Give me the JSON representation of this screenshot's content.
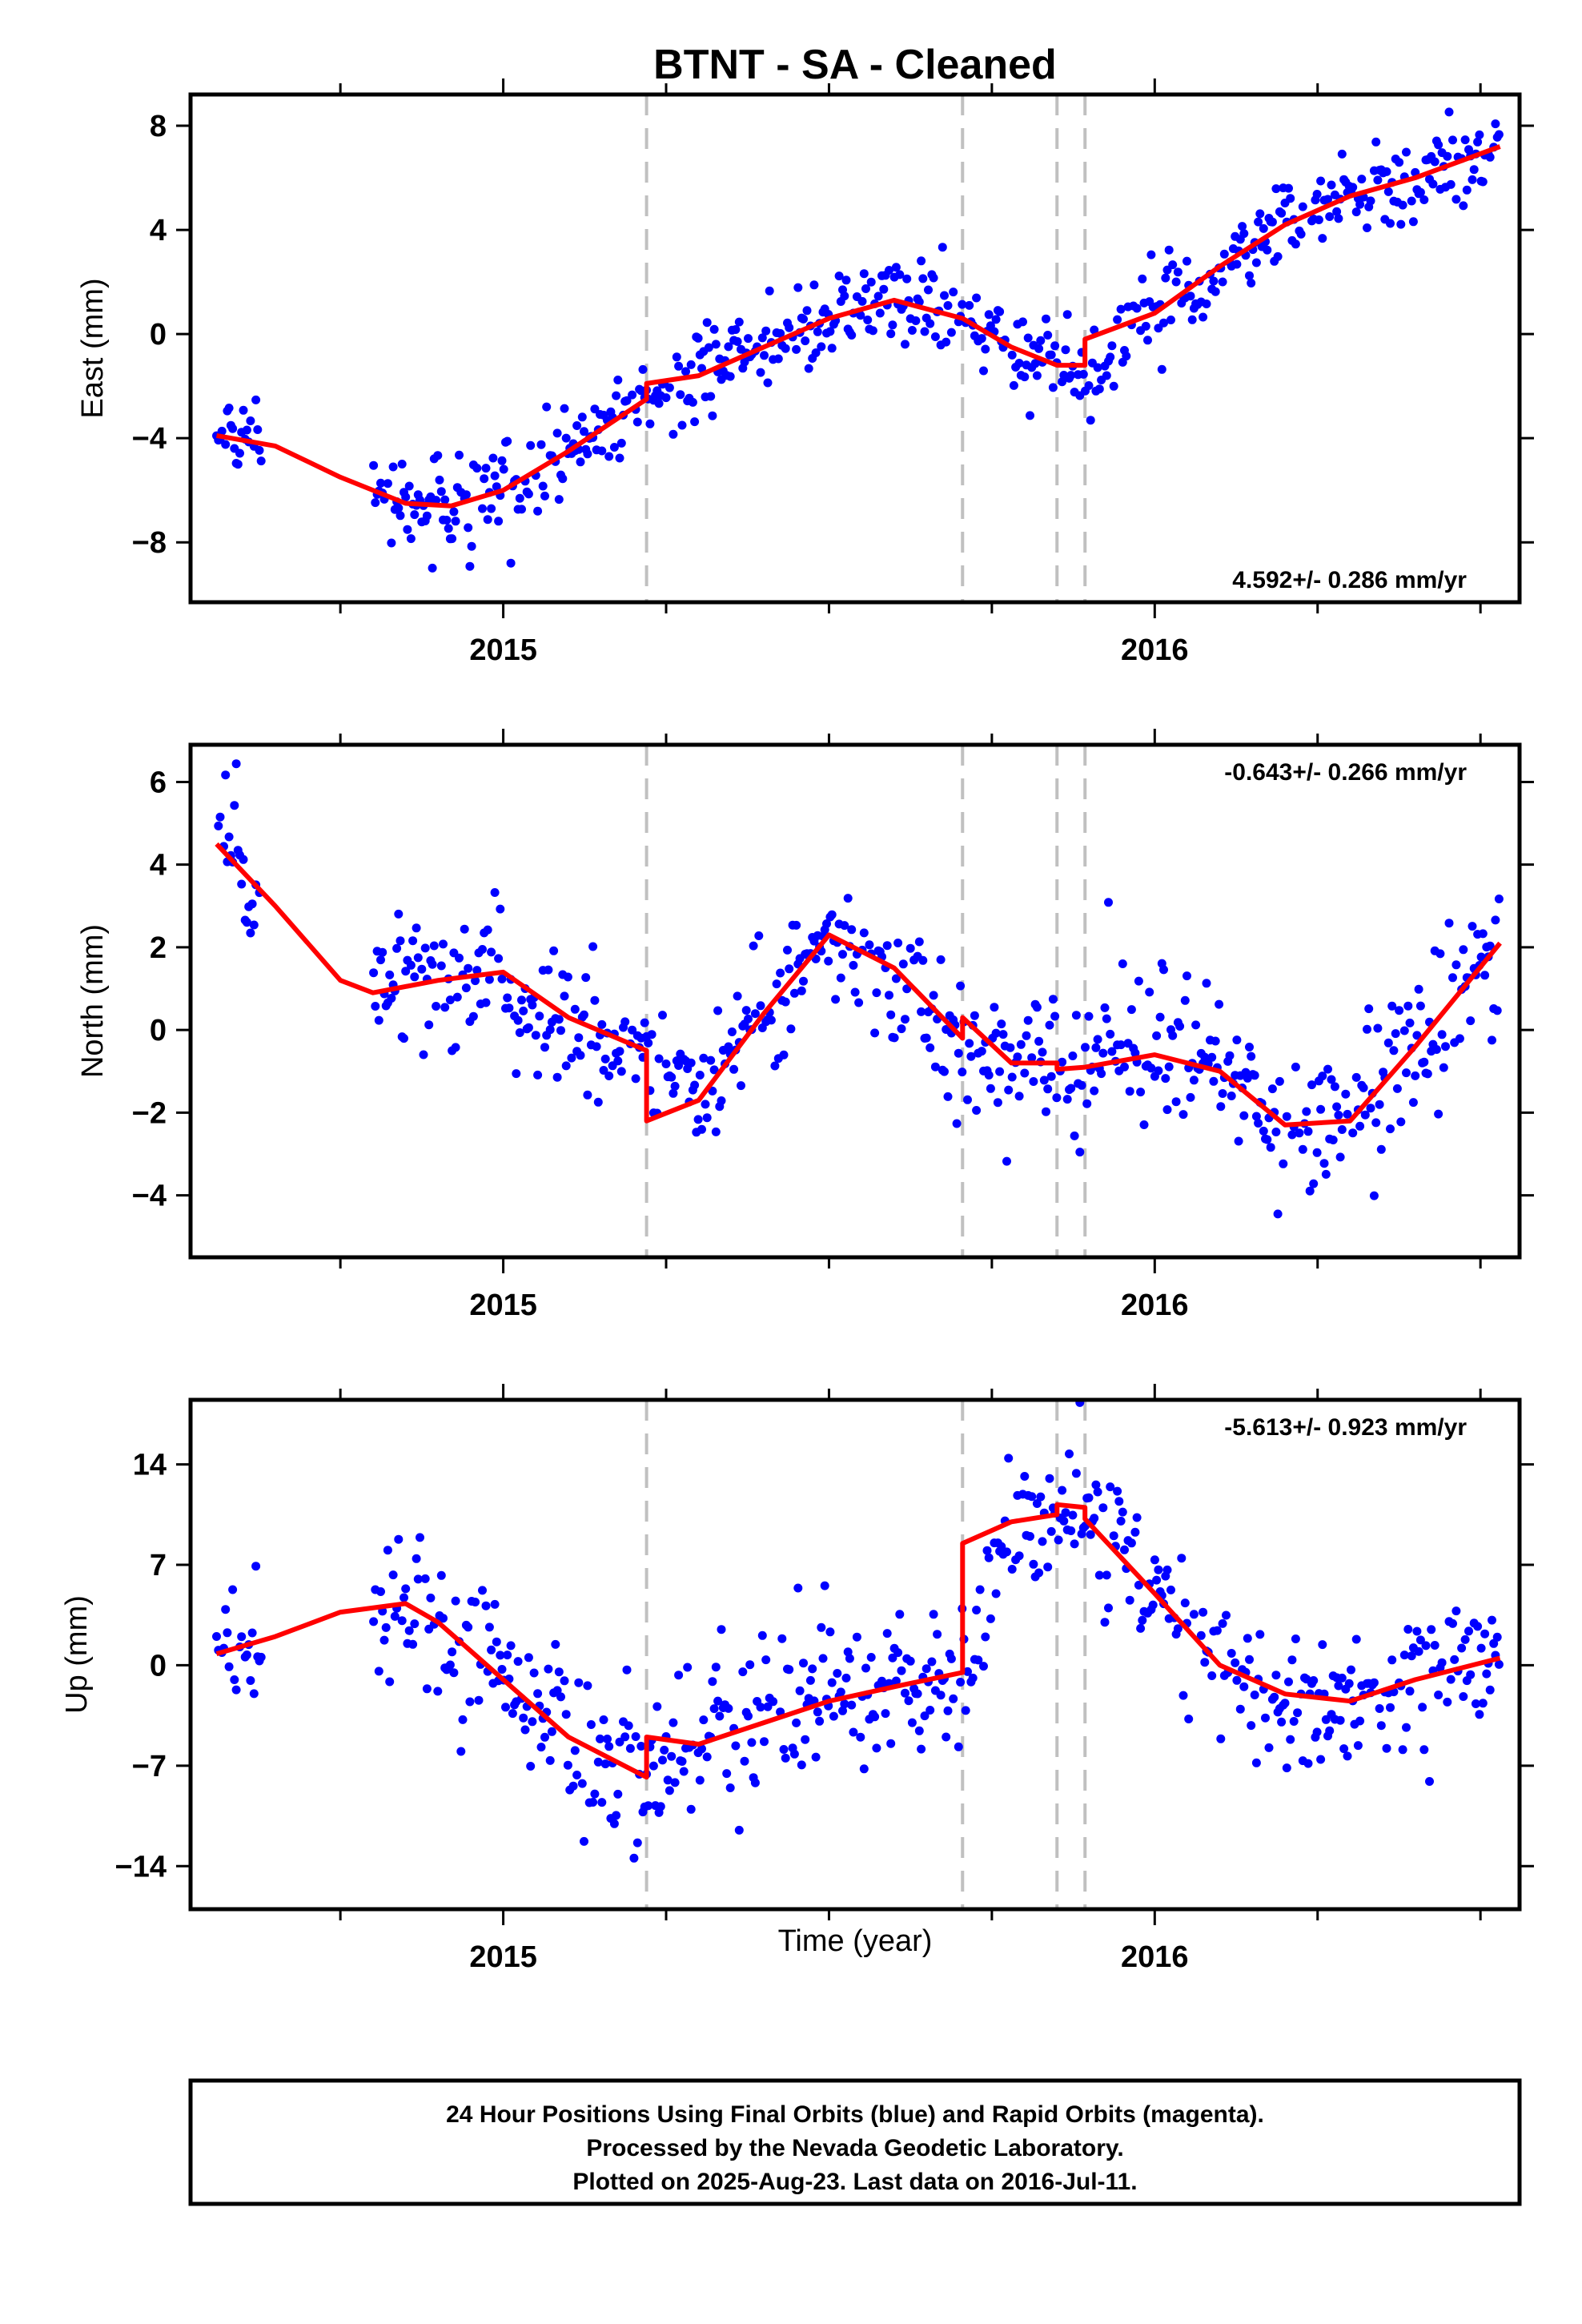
{
  "title": "BTNT  - SA - Cleaned",
  "xlabel": "Time (year)",
  "x_ticks": [
    "2015",
    "2016"
  ],
  "footer": {
    "line1": "24 Hour Positions Using Final Orbits (blue) and Rapid Orbits (magenta).",
    "line2": "Processed by the Nevada Geodetic Laboratory.",
    "line3": "Plotted on 2025-Aug-23. Last data on 2016-Jul-11."
  },
  "colors": {
    "points": "#0000ff",
    "model": "#ff0000",
    "breaks": "#c0c0c0",
    "frame": "#000000"
  },
  "chart_data": [
    {
      "type": "scatter",
      "panel": "east",
      "ylabel": "East (mm)",
      "rate": "4.592+/- 0.286 mm/yr",
      "xlim": [
        2014.52,
        2016.56
      ],
      "ylim": [
        -10.3,
        9.2
      ],
      "y_ticks": [
        -8,
        -4,
        0,
        4,
        8
      ],
      "break_epochs": [
        2015.22,
        2015.705,
        2015.85,
        2015.893
      ],
      "model": {
        "x": [
          2014.56,
          2014.65,
          2014.75,
          2014.85,
          2014.92,
          2015.0,
          2015.1,
          2015.22,
          2015.3,
          2015.4,
          2015.5,
          2015.6,
          2015.705,
          2015.78,
          2015.85,
          2015.893,
          2016.0,
          2016.1,
          2016.2,
          2016.3,
          2016.4,
          2016.53
        ],
        "y": [
          -3.9,
          -4.3,
          -5.5,
          -6.5,
          -6.6,
          -6.0,
          -4.5,
          -2.5,
          -1.6,
          -0.5,
          0.6,
          1.3,
          0.6,
          -0.5,
          -1.2,
          -1.2,
          0.8,
          2.6,
          4.2,
          5.3,
          6.0,
          7.2
        ],
        "breaks": [
          {
            "at": 2015.22,
            "from": -2.5,
            "to": -1.9
          },
          {
            "at": 2015.893,
            "from": -1.2,
            "to": -0.2
          }
        ]
      },
      "residual_std": 0.85
    },
    {
      "type": "scatter",
      "panel": "north",
      "ylabel": "North (mm)",
      "rate": "-0.643+/- 0.266 mm/yr",
      "xlim": [
        2014.52,
        2016.56
      ],
      "ylim": [
        -5.5,
        6.9
      ],
      "y_ticks": [
        -4,
        -2,
        0,
        2,
        4,
        6
      ],
      "break_epochs": [
        2015.22,
        2015.705,
        2015.85,
        2015.893
      ],
      "model": {
        "x": [
          2014.56,
          2014.65,
          2014.75,
          2014.8,
          2014.9,
          2015.0,
          2015.1,
          2015.22,
          2015.3,
          2015.4,
          2015.5,
          2015.6,
          2015.705,
          2015.78,
          2015.85,
          2015.893,
          2016.0,
          2016.1,
          2016.2,
          2016.3,
          2016.4,
          2016.53
        ],
        "y": [
          4.5,
          3.0,
          1.2,
          0.9,
          1.2,
          1.4,
          0.3,
          -0.5,
          -1.7,
          0.4,
          2.3,
          1.5,
          -0.2,
          -0.8,
          -0.8,
          -0.9,
          -0.6,
          -1.0,
          -2.3,
          -2.2,
          -0.4,
          2.1
        ],
        "breaks": [
          {
            "at": 2015.22,
            "from": -0.5,
            "to": -2.2
          },
          {
            "at": 2015.705,
            "from": -0.2,
            "to": 0.3
          },
          {
            "at": 2015.85,
            "from": -0.8,
            "to": -0.95
          }
        ]
      },
      "residual_std": 0.85
    },
    {
      "type": "scatter",
      "panel": "up",
      "ylabel": "Up (mm)",
      "rate": "-5.613+/- 0.923 mm/yr",
      "xlim": [
        2014.52,
        2016.56
      ],
      "ylim": [
        -17.0,
        18.5
      ],
      "y_ticks": [
        -14,
        -7,
        0,
        7,
        14
      ],
      "break_epochs": [
        2015.22,
        2015.705,
        2015.85,
        2015.893
      ],
      "model": {
        "x": [
          2014.56,
          2014.65,
          2014.75,
          2014.85,
          2014.9,
          2015.0,
          2015.1,
          2015.22,
          2015.3,
          2015.4,
          2015.5,
          2015.6,
          2015.705,
          2015.78,
          2015.85,
          2015.893,
          2016.0,
          2016.1,
          2016.2,
          2016.3,
          2016.4,
          2016.53
        ],
        "y": [
          0.8,
          2.0,
          3.7,
          4.3,
          3.0,
          -1.0,
          -5.0,
          -7.5,
          -5.5,
          -4.0,
          -2.5,
          -1.5,
          -0.5,
          10.0,
          11.2,
          10.5,
          5.0,
          0.0,
          -2.0,
          -2.5,
          -1.0,
          0.5
        ],
        "breaks": [
          {
            "at": 2015.22,
            "from": -7.8,
            "to": -5.0
          },
          {
            "at": 2015.705,
            "from": -0.5,
            "to": 8.5
          },
          {
            "at": 2015.85,
            "from": 10.5,
            "to": 11.2
          },
          {
            "at": 2015.893,
            "from": 11.0,
            "to": 10.2
          }
        ]
      },
      "residual_std": 2.8
    }
  ]
}
